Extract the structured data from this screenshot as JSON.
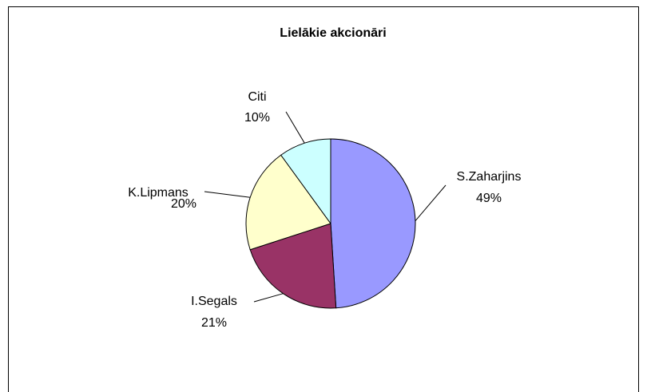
{
  "chart_data": {
    "type": "pie",
    "title": "Lielākie akcionāri",
    "categories": [
      "S.Zaharjins",
      "I.Segals",
      "K.Lipmans",
      "Citi"
    ],
    "values": [
      49,
      21,
      20,
      10
    ],
    "value_labels": [
      "49%",
      "21%",
      "20%",
      "10%"
    ],
    "colors": [
      "#9999ff",
      "#993366",
      "#ffffcc",
      "#ccffff"
    ]
  }
}
